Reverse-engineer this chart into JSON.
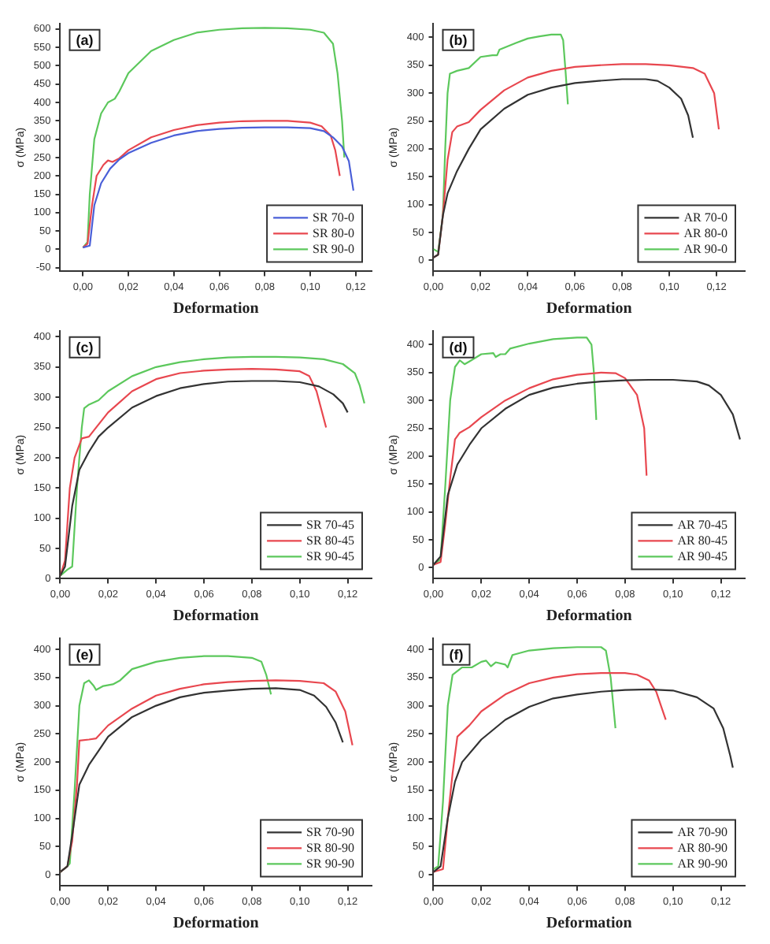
{
  "chart_data": [
    {
      "type": "line",
      "annotations": [
        "(a)"
      ],
      "xlabel": "Deformation",
      "ylabel": "σ (MPa)",
      "xlim": [
        -0.01,
        0.127
      ],
      "ylim": [
        -60,
        615
      ],
      "xticks": [
        {
          "value": 0,
          "label": "0,00"
        },
        {
          "value": 0.02,
          "label": "0,02"
        },
        {
          "value": 0.04,
          "label": "0,04"
        },
        {
          "value": 0.06,
          "label": "0,06"
        },
        {
          "value": 0.08,
          "label": "0,08"
        },
        {
          "value": 0.1,
          "label": "0,10"
        },
        {
          "value": 0.12,
          "label": "0,12"
        }
      ],
      "yticks": [
        -50,
        0,
        50,
        100,
        150,
        200,
        250,
        300,
        350,
        400,
        450,
        500,
        550,
        600
      ],
      "grid": false,
      "legend": "bottom right",
      "marker": "none",
      "line_style": "solid",
      "series": [
        {
          "name": "SR 70-0",
          "color": "#4a5fd8",
          "x": [
            0,
            0.003,
            0.005,
            0.008,
            0.012,
            0.016,
            0.02,
            0.03,
            0.04,
            0.05,
            0.06,
            0.07,
            0.08,
            0.09,
            0.1,
            0.106,
            0.11,
            0.114,
            0.117,
            0.119
          ],
          "values": [
            5,
            10,
            120,
            180,
            220,
            245,
            262,
            290,
            310,
            322,
            328,
            331,
            332,
            332,
            330,
            322,
            305,
            280,
            240,
            160
          ]
        },
        {
          "name": "SR 80-0",
          "color": "#e8474f",
          "x": [
            0,
            0.002,
            0.004,
            0.006,
            0.009,
            0.011,
            0.013,
            0.016,
            0.02,
            0.03,
            0.04,
            0.05,
            0.06,
            0.07,
            0.08,
            0.09,
            0.1,
            0.105,
            0.109,
            0.111,
            0.113
          ],
          "values": [
            5,
            15,
            120,
            200,
            230,
            242,
            238,
            248,
            270,
            305,
            325,
            338,
            345,
            349,
            350,
            350,
            345,
            335,
            310,
            270,
            200
          ]
        },
        {
          "name": "SR 90-0",
          "color": "#5cc85c",
          "x": [
            0,
            0.002,
            0.003,
            0.005,
            0.008,
            0.011,
            0.014,
            0.016,
            0.02,
            0.03,
            0.04,
            0.05,
            0.06,
            0.07,
            0.08,
            0.09,
            0.1,
            0.106,
            0.11,
            0.112,
            0.114,
            0.115
          ],
          "values": [
            5,
            20,
            150,
            300,
            370,
            400,
            410,
            430,
            480,
            540,
            570,
            590,
            598,
            602,
            603,
            602,
            598,
            590,
            560,
            480,
            350,
            250
          ]
        }
      ]
    },
    {
      "type": "line",
      "annotations": [
        "(b)"
      ],
      "xlabel": "Deformation",
      "ylabel": "σ (MPa)",
      "xlim": [
        0,
        0.132
      ],
      "ylim": [
        -20,
        425
      ],
      "xticks": [
        {
          "value": 0,
          "label": "0,00"
        },
        {
          "value": 0.02,
          "label": "0,02"
        },
        {
          "value": 0.04,
          "label": "0,04"
        },
        {
          "value": 0.06,
          "label": "0,06"
        },
        {
          "value": 0.08,
          "label": "0,08"
        },
        {
          "value": 0.1,
          "label": "0,10"
        },
        {
          "value": 0.12,
          "label": "0,12"
        }
      ],
      "yticks": [
        0,
        50,
        100,
        150,
        200,
        250,
        300,
        350,
        400
      ],
      "grid": false,
      "legend": "bottom right",
      "marker": "none",
      "line_style": "solid",
      "series": [
        {
          "name": "AR 70-0",
          "color": "#333333",
          "x": [
            0,
            0.002,
            0.004,
            0.006,
            0.01,
            0.015,
            0.02,
            0.03,
            0.04,
            0.05,
            0.06,
            0.07,
            0.08,
            0.09,
            0.095,
            0.1,
            0.105,
            0.108,
            0.11
          ],
          "values": [
            5,
            10,
            80,
            120,
            160,
            200,
            235,
            272,
            297,
            310,
            318,
            322,
            325,
            325,
            322,
            310,
            290,
            260,
            220
          ]
        },
        {
          "name": "AR 80-0",
          "color": "#e8474f",
          "x": [
            0,
            0.002,
            0.004,
            0.006,
            0.008,
            0.01,
            0.015,
            0.02,
            0.03,
            0.04,
            0.05,
            0.06,
            0.07,
            0.08,
            0.09,
            0.1,
            0.11,
            0.115,
            0.119,
            0.121
          ],
          "values": [
            5,
            10,
            80,
            180,
            230,
            240,
            248,
            270,
            305,
            328,
            340,
            347,
            350,
            352,
            352,
            350,
            345,
            335,
            300,
            235
          ]
        },
        {
          "name": "AR 90-0",
          "color": "#5cc85c",
          "x": [
            0,
            0.002,
            0.004,
            0.005,
            0.006,
            0.007,
            0.01,
            0.015,
            0.02,
            0.025,
            0.027,
            0.028,
            0.035,
            0.04,
            0.045,
            0.05,
            0.054,
            0.055,
            0.056,
            0.057
          ],
          "values": [
            20,
            15,
            80,
            200,
            300,
            335,
            340,
            345,
            365,
            368,
            368,
            378,
            390,
            398,
            402,
            405,
            405,
            395,
            340,
            280
          ]
        }
      ]
    },
    {
      "type": "line",
      "annotations": [
        "(c)"
      ],
      "xlabel": "Deformation",
      "ylabel": "σ (MPa)",
      "xlim": [
        0,
        0.13
      ],
      "ylim": [
        0,
        410
      ],
      "xticks": [
        {
          "value": 0,
          "label": "0,00"
        },
        {
          "value": 0.02,
          "label": "0,02"
        },
        {
          "value": 0.04,
          "label": "0,04"
        },
        {
          "value": 0.06,
          "label": "0,06"
        },
        {
          "value": 0.08,
          "label": "0,08"
        },
        {
          "value": 0.1,
          "label": "0,10"
        },
        {
          "value": 0.12,
          "label": "0,12"
        }
      ],
      "yticks": [
        0,
        50,
        100,
        150,
        200,
        250,
        300,
        350,
        400
      ],
      "grid": false,
      "legend": "bottom right",
      "marker": "none",
      "line_style": "solid",
      "series": [
        {
          "name": "SR 70-45",
          "color": "#333333",
          "x": [
            0,
            0.002,
            0.005,
            0.008,
            0.012,
            0.016,
            0.02,
            0.03,
            0.04,
            0.05,
            0.06,
            0.07,
            0.08,
            0.09,
            0.1,
            0.108,
            0.114,
            0.118,
            0.12
          ],
          "values": [
            5,
            20,
            120,
            180,
            210,
            235,
            250,
            283,
            302,
            315,
            322,
            326,
            327,
            327,
            325,
            318,
            305,
            290,
            275
          ]
        },
        {
          "name": "SR 80-45",
          "color": "#e8474f",
          "x": [
            0,
            0.002,
            0.004,
            0.006,
            0.009,
            0.012,
            0.014,
            0.02,
            0.03,
            0.04,
            0.05,
            0.06,
            0.07,
            0.08,
            0.09,
            0.1,
            0.104,
            0.107,
            0.109,
            0.111
          ],
          "values": [
            5,
            30,
            150,
            200,
            232,
            235,
            245,
            275,
            310,
            330,
            340,
            344,
            346,
            347,
            346,
            343,
            335,
            310,
            280,
            250
          ]
        },
        {
          "name": "SR 90-45",
          "color": "#5cc85c",
          "x": [
            0,
            0.003,
            0.005,
            0.007,
            0.009,
            0.01,
            0.012,
            0.016,
            0.02,
            0.03,
            0.04,
            0.05,
            0.06,
            0.07,
            0.08,
            0.09,
            0.1,
            0.11,
            0.118,
            0.123,
            0.125,
            0.127
          ],
          "values": [
            5,
            15,
            20,
            150,
            250,
            282,
            288,
            295,
            310,
            335,
            350,
            358,
            363,
            366,
            367,
            367,
            366,
            363,
            355,
            340,
            320,
            290
          ]
        }
      ]
    },
    {
      "type": "line",
      "annotations": [
        "(d)"
      ],
      "xlabel": "Deformation",
      "ylabel": "σ (MPa)",
      "xlim": [
        0,
        0.13
      ],
      "ylim": [
        -20,
        425
      ],
      "xticks": [
        {
          "value": 0,
          "label": "0,00"
        },
        {
          "value": 0.02,
          "label": "0,02"
        },
        {
          "value": 0.04,
          "label": "0,04"
        },
        {
          "value": 0.06,
          "label": "0,06"
        },
        {
          "value": 0.08,
          "label": "0,08"
        },
        {
          "value": 0.1,
          "label": "0,10"
        },
        {
          "value": 0.12,
          "label": "0,12"
        }
      ],
      "yticks": [
        0,
        50,
        100,
        150,
        200,
        250,
        300,
        350,
        400
      ],
      "grid": false,
      "legend": "bottom right",
      "marker": "none",
      "line_style": "solid",
      "series": [
        {
          "name": "AR 70-45",
          "color": "#333333",
          "x": [
            0,
            0.003,
            0.006,
            0.01,
            0.015,
            0.02,
            0.03,
            0.04,
            0.05,
            0.06,
            0.07,
            0.08,
            0.09,
            0.1,
            0.11,
            0.115,
            0.12,
            0.125,
            0.128
          ],
          "values": [
            5,
            20,
            130,
            185,
            220,
            250,
            285,
            310,
            323,
            330,
            334,
            336,
            337,
            337,
            334,
            327,
            310,
            275,
            230
          ]
        },
        {
          "name": "AR 80-45",
          "color": "#e8474f",
          "x": [
            0,
            0.003,
            0.005,
            0.007,
            0.009,
            0.011,
            0.015,
            0.02,
            0.03,
            0.04,
            0.05,
            0.06,
            0.07,
            0.076,
            0.08,
            0.085,
            0.088,
            0.089
          ],
          "values": [
            5,
            10,
            80,
            160,
            230,
            242,
            252,
            270,
            300,
            322,
            338,
            346,
            350,
            349,
            340,
            310,
            250,
            165
          ]
        },
        {
          "name": "AR 90-45",
          "color": "#5cc85c",
          "x": [
            0,
            0.003,
            0.005,
            0.007,
            0.009,
            0.011,
            0.013,
            0.015,
            0.02,
            0.025,
            0.026,
            0.028,
            0.03,
            0.032,
            0.04,
            0.05,
            0.06,
            0.064,
            0.066,
            0.067,
            0.068
          ],
          "values": [
            5,
            15,
            150,
            300,
            360,
            372,
            365,
            370,
            383,
            385,
            378,
            383,
            383,
            393,
            402,
            410,
            413,
            413,
            400,
            350,
            265
          ]
        }
      ]
    },
    {
      "type": "line",
      "annotations": [
        "(e)"
      ],
      "xlabel": "Deformation",
      "ylabel": "σ (MPa)",
      "xlim": [
        0,
        0.13
      ],
      "ylim": [
        -20,
        420
      ],
      "xticks": [
        {
          "value": 0,
          "label": "0,00"
        },
        {
          "value": 0.02,
          "label": "0,02"
        },
        {
          "value": 0.04,
          "label": "0,04"
        },
        {
          "value": 0.06,
          "label": "0,06"
        },
        {
          "value": 0.08,
          "label": "0,08"
        },
        {
          "value": 0.1,
          "label": "0,10"
        },
        {
          "value": 0.12,
          "label": "0,12"
        }
      ],
      "yticks": [
        0,
        50,
        100,
        150,
        200,
        250,
        300,
        350,
        400
      ],
      "grid": false,
      "legend": "bottom right",
      "marker": "none",
      "line_style": "solid",
      "series": [
        {
          "name": "SR 70-90",
          "color": "#333333",
          "x": [
            0,
            0.003,
            0.005,
            0.008,
            0.012,
            0.016,
            0.02,
            0.03,
            0.04,
            0.05,
            0.06,
            0.07,
            0.08,
            0.09,
            0.1,
            0.106,
            0.111,
            0.115,
            0.118
          ],
          "values": [
            5,
            15,
            70,
            160,
            195,
            220,
            245,
            280,
            300,
            315,
            323,
            327,
            330,
            331,
            328,
            318,
            298,
            270,
            235
          ]
        },
        {
          "name": "SR 80-90",
          "color": "#e8474f",
          "x": [
            0,
            0.003,
            0.005,
            0.007,
            0.008,
            0.012,
            0.015,
            0.02,
            0.03,
            0.04,
            0.05,
            0.06,
            0.07,
            0.08,
            0.09,
            0.1,
            0.11,
            0.115,
            0.119,
            0.122
          ],
          "values": [
            5,
            15,
            60,
            160,
            238,
            240,
            242,
            265,
            295,
            318,
            330,
            338,
            342,
            344,
            345,
            344,
            340,
            325,
            290,
            230
          ]
        },
        {
          "name": "SR 90-90",
          "color": "#5cc85c",
          "x": [
            0,
            0.003,
            0.004,
            0.006,
            0.008,
            0.01,
            0.012,
            0.014,
            0.015,
            0.018,
            0.022,
            0.025,
            0.03,
            0.04,
            0.05,
            0.06,
            0.07,
            0.08,
            0.084,
            0.086,
            0.088
          ],
          "values": [
            5,
            15,
            20,
            150,
            300,
            340,
            345,
            335,
            328,
            335,
            338,
            345,
            365,
            378,
            385,
            388,
            388,
            385,
            378,
            355,
            320
          ]
        }
      ]
    },
    {
      "type": "line",
      "annotations": [
        "(f)"
      ],
      "xlabel": "Deformation",
      "ylabel": "σ (MPa)",
      "xlim": [
        0,
        0.13
      ],
      "ylim": [
        -20,
        420
      ],
      "xticks": [
        {
          "value": 0,
          "label": "0,00"
        },
        {
          "value": 0.02,
          "label": "0,02"
        },
        {
          "value": 0.04,
          "label": "0,04"
        },
        {
          "value": 0.06,
          "label": "0,06"
        },
        {
          "value": 0.08,
          "label": "0,08"
        },
        {
          "value": 0.1,
          "label": "0,10"
        },
        {
          "value": 0.12,
          "label": "0,12"
        }
      ],
      "yticks": [
        0,
        50,
        100,
        150,
        200,
        250,
        300,
        350,
        400
      ],
      "grid": false,
      "legend": "bottom right",
      "marker": "none",
      "line_style": "solid",
      "series": [
        {
          "name": "AR 70-90",
          "color": "#333333",
          "x": [
            0,
            0.003,
            0.006,
            0.009,
            0.012,
            0.02,
            0.03,
            0.04,
            0.05,
            0.06,
            0.07,
            0.08,
            0.09,
            0.1,
            0.11,
            0.117,
            0.121,
            0.124,
            0.125
          ],
          "values": [
            5,
            15,
            100,
            165,
            200,
            240,
            275,
            298,
            313,
            320,
            325,
            328,
            329,
            327,
            315,
            295,
            260,
            210,
            190
          ]
        },
        {
          "name": "AR 80-90",
          "color": "#e8474f",
          "x": [
            0,
            0.004,
            0.006,
            0.008,
            0.01,
            0.015,
            0.02,
            0.03,
            0.04,
            0.05,
            0.06,
            0.07,
            0.08,
            0.085,
            0.09,
            0.093,
            0.095,
            0.097
          ],
          "values": [
            5,
            10,
            100,
            180,
            245,
            265,
            290,
            320,
            340,
            350,
            356,
            358,
            358,
            355,
            345,
            325,
            300,
            275
          ]
        },
        {
          "name": "AR 90-90",
          "color": "#5cc85c",
          "x": [
            0,
            0.002,
            0.004,
            0.006,
            0.008,
            0.012,
            0.016,
            0.02,
            0.022,
            0.024,
            0.026,
            0.03,
            0.031,
            0.033,
            0.04,
            0.05,
            0.06,
            0.07,
            0.072,
            0.074,
            0.076
          ],
          "values": [
            10,
            15,
            130,
            300,
            355,
            368,
            368,
            378,
            380,
            370,
            377,
            373,
            368,
            390,
            398,
            402,
            404,
            404,
            398,
            350,
            260
          ]
        }
      ]
    }
  ]
}
